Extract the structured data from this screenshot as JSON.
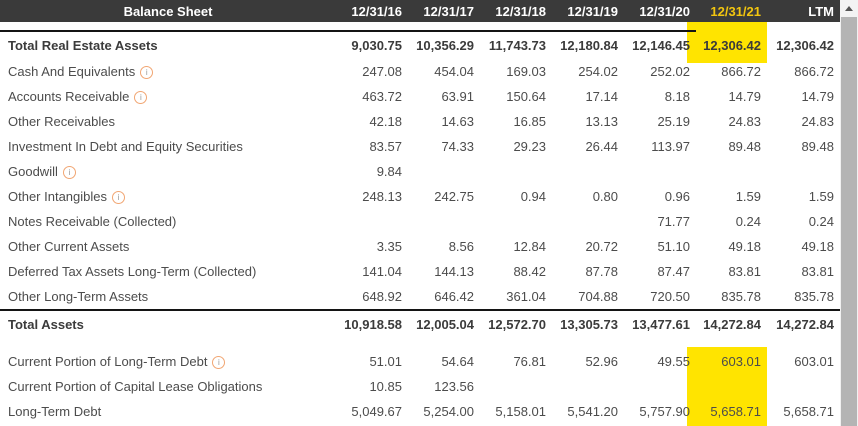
{
  "colors": {
    "highlight": "#ffe400",
    "header_bg": "#3a3a3a",
    "header_highlight_text": "#f2c50f",
    "info_icon_border": "#f1a673",
    "total_border": "#141414"
  },
  "table": {
    "title": "Balance Sheet",
    "columns": [
      {
        "label": "12/31/16",
        "highlighted": false
      },
      {
        "label": "12/31/17",
        "highlighted": false
      },
      {
        "label": "12/31/18",
        "highlighted": false
      },
      {
        "label": "12/31/19",
        "highlighted": false
      },
      {
        "label": "12/31/20",
        "highlighted": false
      },
      {
        "label": "12/31/21",
        "highlighted": true
      },
      {
        "label": "LTM",
        "highlighted": false
      }
    ],
    "info_icon_glyph": "i",
    "rows": [
      {
        "label": "Total Real Estate Assets",
        "bold": true,
        "info": false,
        "border": "partial",
        "gap_after": false,
        "values": [
          "9,030.75",
          "10,356.29",
          "11,743.73",
          "12,180.84",
          "12,146.45",
          "12,306.42",
          "12,306.42"
        ]
      },
      {
        "label": "Cash And Equivalents",
        "bold": false,
        "info": true,
        "border": "none",
        "gap_after": false,
        "values": [
          "247.08",
          "454.04",
          "169.03",
          "254.02",
          "252.02",
          "866.72",
          "866.72"
        ]
      },
      {
        "label": "Accounts Receivable",
        "bold": false,
        "info": true,
        "border": "none",
        "gap_after": false,
        "values": [
          "463.72",
          "63.91",
          "150.64",
          "17.14",
          "8.18",
          "14.79",
          "14.79"
        ]
      },
      {
        "label": "Other Receivables",
        "bold": false,
        "info": false,
        "border": "none",
        "gap_after": false,
        "values": [
          "42.18",
          "14.63",
          "16.85",
          "13.13",
          "25.19",
          "24.83",
          "24.83"
        ]
      },
      {
        "label": "Investment In Debt and Equity Securities",
        "bold": false,
        "info": false,
        "border": "none",
        "gap_after": false,
        "values": [
          "83.57",
          "74.33",
          "29.23",
          "26.44",
          "113.97",
          "89.48",
          "89.48"
        ]
      },
      {
        "label": "Goodwill",
        "bold": false,
        "info": true,
        "border": "none",
        "gap_after": false,
        "values": [
          "9.84",
          "",
          "",
          "",
          "",
          "",
          ""
        ]
      },
      {
        "label": "Other Intangibles",
        "bold": false,
        "info": true,
        "border": "none",
        "gap_after": false,
        "values": [
          "248.13",
          "242.75",
          "0.94",
          "0.80",
          "0.96",
          "1.59",
          "1.59"
        ]
      },
      {
        "label": "Notes Receivable (Collected)",
        "bold": false,
        "info": false,
        "border": "none",
        "gap_after": false,
        "values": [
          "",
          "",
          "",
          "",
          "71.77",
          "0.24",
          "0.24"
        ]
      },
      {
        "label": "Other Current Assets",
        "bold": false,
        "info": false,
        "border": "none",
        "gap_after": false,
        "values": [
          "3.35",
          "8.56",
          "12.84",
          "20.72",
          "51.10",
          "49.18",
          "49.18"
        ]
      },
      {
        "label": "Deferred Tax Assets Long-Term (Collected)",
        "bold": false,
        "info": false,
        "border": "none",
        "gap_after": false,
        "values": [
          "141.04",
          "144.13",
          "88.42",
          "87.78",
          "87.47",
          "83.81",
          "83.81"
        ]
      },
      {
        "label": "Other Long-Term Assets",
        "bold": false,
        "info": false,
        "border": "none",
        "gap_after": false,
        "values": [
          "648.92",
          "646.42",
          "361.04",
          "704.88",
          "720.50",
          "835.78",
          "835.78"
        ]
      },
      {
        "label": "Total Assets",
        "bold": true,
        "info": false,
        "border": "full",
        "gap_after": true,
        "values": [
          "10,918.58",
          "12,005.04",
          "12,572.70",
          "13,305.73",
          "13,477.61",
          "14,272.84",
          "14,272.84"
        ]
      },
      {
        "label": "Current Portion of Long-Term Debt",
        "bold": false,
        "info": true,
        "border": "none",
        "gap_after": false,
        "values": [
          "51.01",
          "54.64",
          "76.81",
          "52.96",
          "49.55",
          "603.01",
          "603.01"
        ]
      },
      {
        "label": "Current Portion of Capital Lease Obligations",
        "bold": false,
        "info": false,
        "border": "none",
        "gap_after": false,
        "values": [
          "10.85",
          "123.56",
          "",
          "",
          "",
          "",
          ""
        ]
      },
      {
        "label": "Long-Term Debt",
        "bold": false,
        "info": false,
        "border": "none",
        "gap_after": false,
        "values": [
          "5,049.67",
          "5,254.00",
          "5,158.01",
          "5,541.20",
          "5,757.90",
          "5,658.71",
          "5,658.71"
        ]
      }
    ]
  }
}
